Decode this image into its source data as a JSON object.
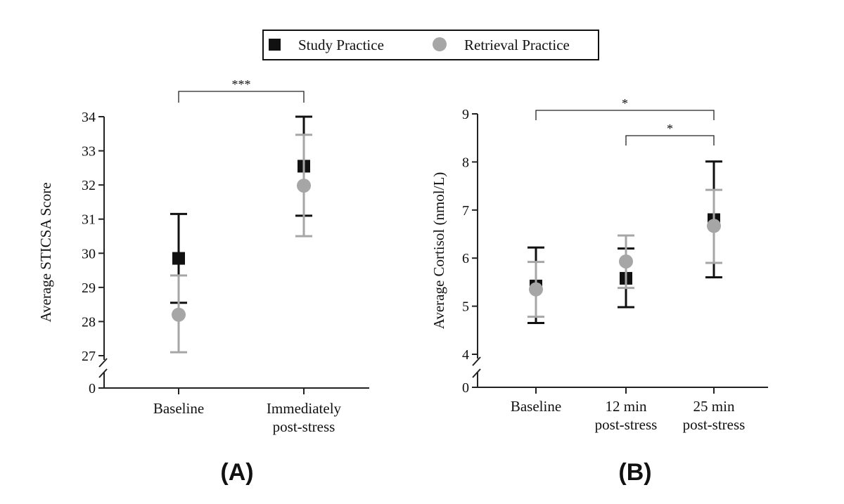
{
  "colors": {
    "study": "#111111",
    "retrieval": "#a6a6a6",
    "axis": "#222222"
  },
  "legend": {
    "study_label": "Study Practice",
    "retrieval_label": "Retrieval Practice"
  },
  "chart_data": [
    {
      "type": "scatter",
      "panel_label": "(A)",
      "ylabel": "Average STICSA Score",
      "categories": [
        "Baseline",
        "Immediately post-stress"
      ],
      "category_lines": [
        [
          "Baseline"
        ],
        [
          "Immediately",
          "post-stress"
        ]
      ],
      "ylim": [
        27,
        34
      ],
      "yticks": [
        27,
        28,
        29,
        30,
        31,
        32,
        33,
        34
      ],
      "ybreak_zero": "0",
      "series": [
        {
          "name": "Study Practice",
          "marker": "square",
          "values": [
            29.85,
            32.55
          ],
          "err_low": [
            28.55,
            31.1
          ],
          "err_high": [
            31.15,
            34.0
          ]
        },
        {
          "name": "Retrieval Practice",
          "marker": "circle",
          "values": [
            28.2,
            31.98
          ],
          "err_low": [
            27.1,
            30.5
          ],
          "err_high": [
            29.35,
            33.47
          ]
        }
      ],
      "significance": [
        {
          "from": 0,
          "to": 1,
          "label": "***"
        }
      ]
    },
    {
      "type": "scatter",
      "panel_label": "(B)",
      "ylabel": "Average Cortisol (nmol/L)",
      "categories": [
        "Baseline",
        "12 min post-stress",
        "25 min post-stress"
      ],
      "category_lines": [
        [
          "Baseline"
        ],
        [
          "12 min",
          "post-stress"
        ],
        [
          "25 min",
          "post-stress"
        ]
      ],
      "ylim": [
        4,
        9
      ],
      "yticks": [
        4,
        5,
        6,
        7,
        8,
        9
      ],
      "ybreak_zero": "0",
      "series": [
        {
          "name": "Study Practice",
          "marker": "square",
          "values": [
            5.42,
            5.58,
            6.8
          ],
          "err_low": [
            4.65,
            4.98,
            5.6
          ],
          "err_high": [
            6.22,
            6.2,
            8.01
          ]
        },
        {
          "name": "Retrieval Practice",
          "marker": "circle",
          "values": [
            5.35,
            5.93,
            6.67
          ],
          "err_low": [
            4.78,
            5.38,
            5.9
          ],
          "err_high": [
            5.92,
            6.47,
            7.42
          ]
        }
      ],
      "significance": [
        {
          "from": 0,
          "to": 2,
          "label": "*"
        },
        {
          "from": 1,
          "to": 2,
          "label": "*"
        }
      ]
    }
  ]
}
